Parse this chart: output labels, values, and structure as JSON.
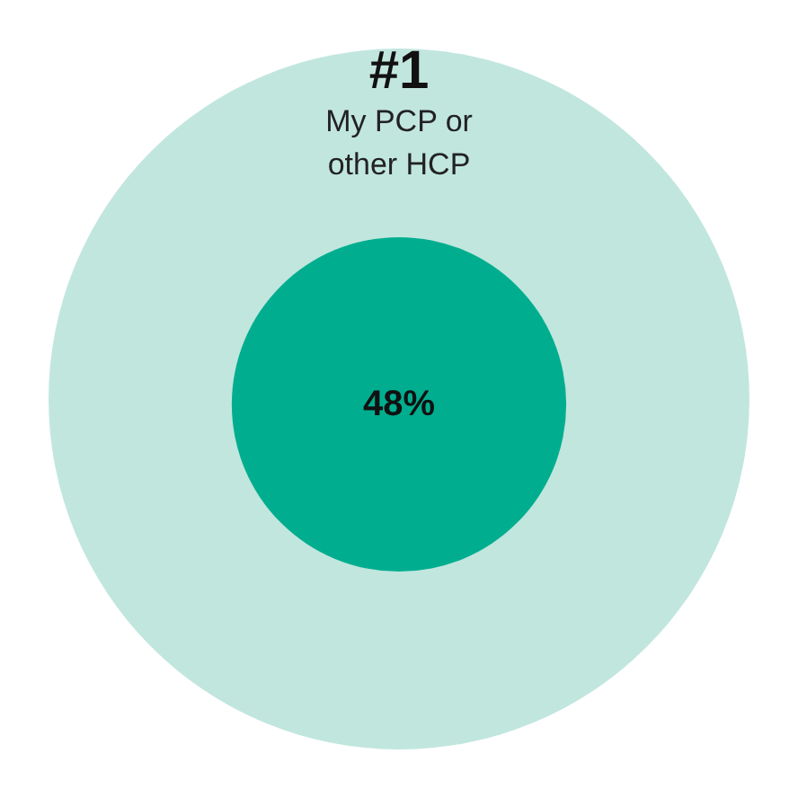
{
  "chart_data": {
    "type": "other",
    "title": "#1",
    "categories": [
      "My PCP or\nother HCP"
    ],
    "values": [
      48
    ],
    "value_labels": [
      "48%"
    ],
    "colors": [
      "#00ae8f"
    ]
  }
}
